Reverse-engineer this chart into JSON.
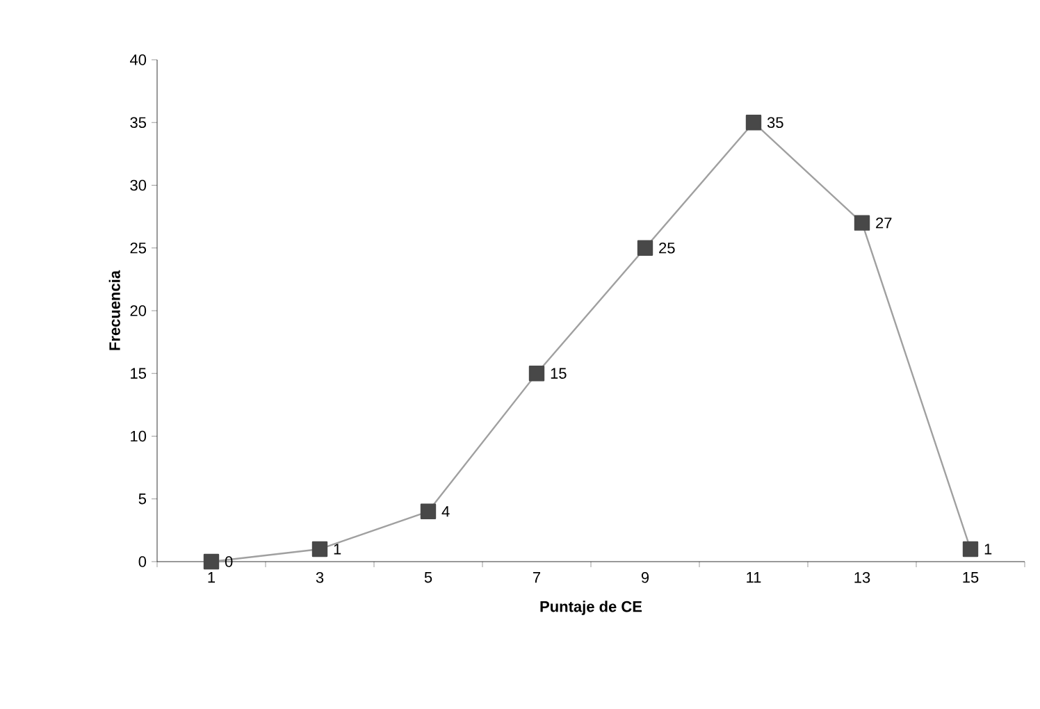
{
  "chart_data": {
    "type": "line",
    "xlabel": "Puntaje de CE",
    "ylabel": "Frecuencia",
    "categories": [
      "1",
      "3",
      "5",
      "7",
      "9",
      "11",
      "13",
      "15"
    ],
    "series": [
      {
        "color": "#a0a0a0",
        "values": [
          0,
          1,
          4,
          15,
          25,
          35,
          27,
          1
        ]
      }
    ],
    "marker": "square",
    "line_style": "solid",
    "ylim": [
      0,
      40
    ],
    "yticks": [
      0,
      5,
      10,
      15,
      20,
      25,
      30,
      35,
      40
    ],
    "data_labels": true,
    "grid": false
  }
}
